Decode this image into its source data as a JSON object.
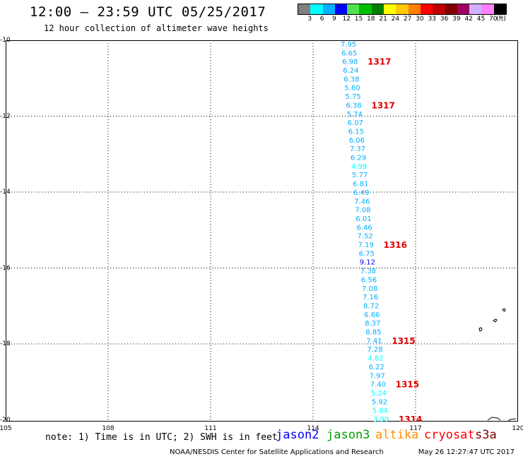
{
  "header": {
    "title": "12:00 – 23:59 UTC 05/25/2017",
    "subtitle": "12 hour collection of altimeter wave heights"
  },
  "colorbar": {
    "colors": [
      "#808080",
      "#00ffff",
      "#00b0ff",
      "#0000ff",
      "#50e050",
      "#00c000",
      "#008000",
      "#ffff00",
      "#ffc800",
      "#ff8000",
      "#ff0000",
      "#c00000",
      "#800000",
      "#a00060",
      "#d0b0ff",
      "#ff80ff",
      "#000000"
    ],
    "labels": [
      "3",
      "6",
      "9",
      "12",
      "15",
      "18",
      "21",
      "24",
      "27",
      "30",
      "33",
      "36",
      "39",
      "42",
      "45",
      "70",
      "(ft)"
    ]
  },
  "axes": {
    "lat_labels": [
      "-10",
      "-12",
      "-14",
      "-16",
      "-18",
      "-20"
    ],
    "lon_labels": [
      "105",
      "108",
      "111",
      "114",
      "117",
      "120"
    ]
  },
  "track": {
    "wave_heights": [
      "7.95",
      "6.65",
      "6.98",
      "6.24",
      "6.38",
      "5.60",
      "5.75",
      "6.38",
      "5.74",
      "6.07",
      "6.15",
      "6.06",
      "7.37",
      "6.29",
      "4.99",
      "5.77",
      "6.81",
      "6.49",
      "7.46",
      "7.08",
      "6.01",
      "6.46",
      "7.52",
      "7.19",
      "6.75",
      "9.12",
      "7.38",
      "6.56",
      "7.08",
      "7.16",
      "8.72",
      "6.66",
      "8.37",
      "8.85",
      "7.41",
      "7.28",
      "4.82",
      "6.22",
      "7.97",
      "7.40",
      "5.24",
      "5.92",
      "5.64",
      "3.90"
    ],
    "wave_colors": [
      "#00b0ff",
      "#00b0ff",
      "#00b0ff",
      "#00b0ff",
      "#00b0ff",
      "#00b0ff",
      "#00b0ff",
      "#00b0ff",
      "#00b0ff",
      "#00b0ff",
      "#00b0ff",
      "#00b0ff",
      "#00b0ff",
      "#00b0ff",
      "#00ffff",
      "#00b0ff",
      "#00b0ff",
      "#00b0ff",
      "#00b0ff",
      "#00b0ff",
      "#00b0ff",
      "#00b0ff",
      "#00b0ff",
      "#00b0ff",
      "#00b0ff",
      "#0000ff",
      "#00b0ff",
      "#00b0ff",
      "#00b0ff",
      "#00b0ff",
      "#00b0ff",
      "#00b0ff",
      "#00b0ff",
      "#00b0ff",
      "#00b0ff",
      "#00b0ff",
      "#00ffff",
      "#00b0ff",
      "#00b0ff",
      "#00b0ff",
      "#00ffff",
      "#00b0ff",
      "#00ffff",
      "#00ffff"
    ],
    "time_stamps": [
      "1317",
      "1317",
      "1316",
      "1315",
      "1315",
      "1314"
    ],
    "time_color": "#e00000"
  },
  "legend": {
    "note": "note: 1) Time is in UTC; 2) SWH is in feet",
    "satellites": [
      {
        "name": "jason2",
        "color": "#0000ff"
      },
      {
        "name": "jason3",
        "color": "#00a000"
      },
      {
        "name": "altika",
        "color": "#ff9000"
      },
      {
        "name": "cryosat",
        "color": "#ff0000"
      },
      {
        "name": "s3a",
        "color": "#800000"
      }
    ]
  },
  "footer": {
    "credit": "NOAA/NESDIS Center for Satellite Applications and Research",
    "timestamp": "May 26 12:27:47 UTC 2017"
  }
}
